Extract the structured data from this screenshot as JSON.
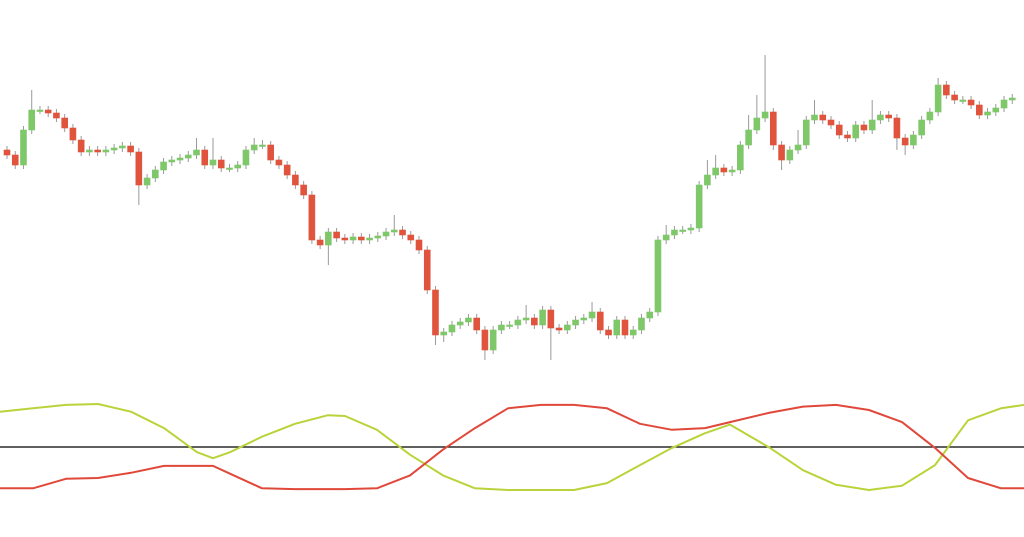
{
  "chart_data": [
    {
      "type": "candlestick",
      "up_color": "#7ec86a",
      "down_color": "#e0533c",
      "wick_color": "#9a9a9a",
      "ylim": [
        0,
        400
      ],
      "open": [
        250,
        245,
        235,
        270,
        290,
        290,
        287,
        282,
        272,
        260,
        248,
        250,
        248,
        250,
        252,
        254,
        248,
        215,
        222,
        230,
        238,
        240,
        242,
        245,
        250,
        235,
        240,
        232,
        232,
        235,
        250,
        255,
        255,
        240,
        235,
        225,
        215,
        205,
        160,
        155,
        168,
        162,
        160,
        163,
        160,
        162,
        164,
        168,
        170,
        165,
        160,
        150,
        110,
        65,
        68,
        75,
        78,
        82,
        70,
        50,
        70,
        75,
        75,
        80,
        82,
        75,
        90,
        72,
        70,
        75,
        80,
        82,
        88,
        70,
        65,
        80,
        65,
        70,
        82,
        88,
        160,
        165,
        170,
        170,
        172,
        215,
        225,
        232,
        228,
        230,
        255,
        270,
        282,
        288,
        255,
        240,
        250,
        255,
        280,
        285,
        280,
        275,
        265,
        262,
        275,
        270,
        280,
        285,
        282,
        262,
        255,
        265,
        280,
        288,
        315,
        305,
        300,
        300,
        295,
        285,
        288,
        292,
        300
      ],
      "close": [
        245,
        235,
        270,
        290,
        290,
        287,
        282,
        272,
        260,
        248,
        250,
        248,
        250,
        252,
        254,
        248,
        215,
        222,
        230,
        238,
        240,
        242,
        245,
        250,
        235,
        240,
        232,
        232,
        235,
        250,
        255,
        255,
        240,
        235,
        225,
        215,
        205,
        160,
        155,
        168,
        162,
        160,
        163,
        160,
        162,
        164,
        168,
        170,
        165,
        160,
        150,
        110,
        65,
        68,
        75,
        78,
        82,
        70,
        50,
        70,
        75,
        75,
        80,
        82,
        75,
        90,
        72,
        70,
        75,
        80,
        82,
        88,
        70,
        65,
        80,
        65,
        70,
        82,
        88,
        160,
        165,
        170,
        170,
        172,
        215,
        225,
        232,
        228,
        230,
        255,
        270,
        282,
        288,
        255,
        240,
        250,
        255,
        280,
        285,
        280,
        275,
        265,
        262,
        275,
        270,
        280,
        285,
        282,
        262,
        255,
        265,
        280,
        288,
        315,
        305,
        300,
        300,
        295,
        285,
        288,
        292,
        300,
        302
      ],
      "high": [
        254,
        249,
        274,
        310,
        294,
        294,
        291,
        286,
        276,
        264,
        254,
        254,
        254,
        256,
        258,
        258,
        252,
        226,
        234,
        242,
        244,
        246,
        249,
        262,
        254,
        262,
        244,
        236,
        239,
        254,
        262,
        260,
        259,
        244,
        239,
        229,
        219,
        209,
        164,
        172,
        172,
        166,
        167,
        167,
        166,
        168,
        172,
        185,
        174,
        169,
        164,
        154,
        114,
        72,
        79,
        82,
        86,
        86,
        74,
        74,
        79,
        79,
        84,
        95,
        86,
        94,
        94,
        76,
        79,
        84,
        86,
        98,
        92,
        74,
        84,
        84,
        74,
        86,
        92,
        164,
        175,
        174,
        174,
        176,
        219,
        240,
        245,
        236,
        234,
        259,
        285,
        305,
        345,
        292,
        259,
        254,
        270,
        284,
        300,
        289,
        284,
        279,
        269,
        279,
        279,
        300,
        289,
        289,
        286,
        266,
        269,
        284,
        292,
        322,
        319,
        309,
        304,
        304,
        299,
        292,
        296,
        304,
        306
      ],
      "low": [
        241,
        231,
        231,
        266,
        286,
        283,
        278,
        268,
        256,
        244,
        244,
        244,
        244,
        246,
        248,
        244,
        195,
        211,
        218,
        226,
        234,
        236,
        238,
        241,
        231,
        231,
        228,
        228,
        228,
        231,
        246,
        251,
        236,
        231,
        221,
        211,
        201,
        156,
        151,
        135,
        158,
        156,
        156,
        156,
        156,
        158,
        160,
        164,
        161,
        156,
        146,
        106,
        55,
        58,
        64,
        71,
        74,
        66,
        40,
        46,
        66,
        71,
        71,
        76,
        71,
        71,
        40,
        66,
        66,
        71,
        76,
        78,
        66,
        61,
        61,
        61,
        61,
        66,
        78,
        84,
        156,
        161,
        166,
        166,
        168,
        211,
        221,
        224,
        224,
        226,
        251,
        266,
        278,
        250,
        230,
        236,
        246,
        251,
        276,
        276,
        271,
        261,
        258,
        258,
        266,
        266,
        276,
        278,
        250,
        245,
        251,
        261,
        276,
        284,
        301,
        296,
        296,
        291,
        281,
        281,
        284,
        288,
        296
      ]
    },
    {
      "type": "line",
      "xlim": [
        0,
        1024
      ],
      "ylim": [
        0,
        100
      ],
      "reference_line": 50,
      "reference_color": "#000000",
      "x": [
        0,
        33,
        66,
        98,
        131,
        164,
        197,
        213,
        230,
        262,
        295,
        328,
        345,
        377,
        410,
        443,
        475,
        508,
        541,
        574,
        607,
        640,
        672,
        705,
        730,
        770,
        803,
        836,
        869,
        902,
        935,
        968,
        1001,
        1024
      ],
      "series": [
        {
          "color": "#b8d43a",
          "values": [
            91,
            95,
            99,
            100,
            91,
            72,
            44,
            37,
            44,
            62,
            77,
            87,
            86,
            70,
            41,
            17,
            2,
            0,
            0,
            0,
            8,
            29,
            49,
            66,
            76,
            49,
            23,
            6,
            0,
            5,
            29,
            81,
            95,
            99
          ]
        },
        {
          "color": "#e0483a",
          "values": [
            2,
            2,
            13,
            14,
            20,
            28,
            28,
            28,
            19,
            2,
            1,
            1,
            1,
            2,
            17,
            47,
            72,
            95,
            99,
            99,
            95,
            77,
            70,
            72,
            79,
            90,
            97,
            99,
            93,
            79,
            49,
            14,
            2,
            2
          ]
        }
      ]
    }
  ]
}
